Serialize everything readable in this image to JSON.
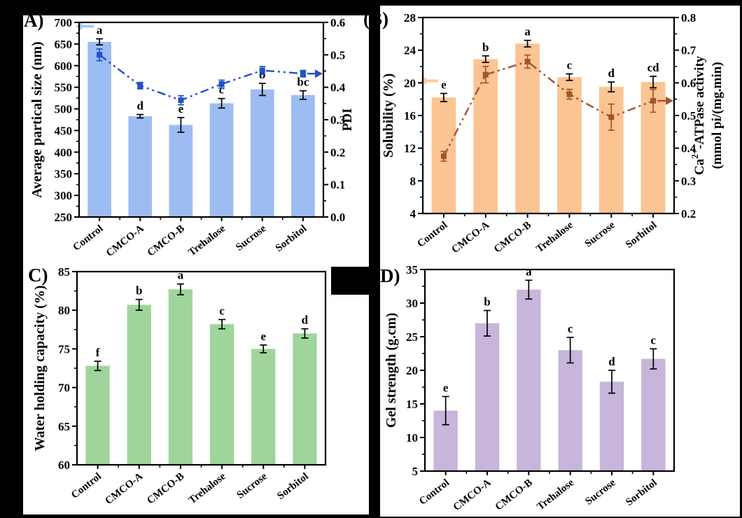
{
  "figure": {
    "background": "#000000",
    "panel_labels": {
      "a": "A)",
      "b": "(B)",
      "c": "C)",
      "d": "D)"
    }
  },
  "chart_data": [
    {
      "panel": "A",
      "type": "bar",
      "categories": [
        "Control",
        "CMCO-A",
        "CMCO-B",
        "Trehalose",
        "Sucrose",
        "Sorbitol"
      ],
      "bars": {
        "name": "Average partical size",
        "axis": "left",
        "values": [
          655,
          483,
          463,
          513,
          545,
          532
        ],
        "errors": [
          7,
          4,
          17,
          11,
          14,
          10
        ],
        "sig_letters": [
          "a",
          "d",
          "e",
          "c",
          "b",
          "bc"
        ],
        "color": "#9dbcf2"
      },
      "line": {
        "name": "PDI",
        "axis": "right",
        "values": [
          0.5,
          0.405,
          0.36,
          0.41,
          0.452,
          0.442
        ],
        "errors": [
          0.018,
          0.01,
          0.014,
          0.012,
          0.012,
          0.01
        ],
        "color": "#2051c8",
        "marker": "square",
        "line_style": "dash-dot-dot"
      },
      "left_axis": {
        "label_lines": [
          "Average partical size (nm)"
        ],
        "min": 250,
        "max": 700,
        "step": 50,
        "decimals": 0
      },
      "right_axis": {
        "label_lines": [
          "PDI"
        ],
        "min": 0.0,
        "max": 0.6,
        "step": 0.1,
        "decimals": 1
      },
      "arrows": {
        "left_color": "#aac7f2",
        "right_color": "#2051c8"
      }
    },
    {
      "panel": "B",
      "type": "bar",
      "categories": [
        "Control",
        "CMCO-A",
        "CMCO-B",
        "Trehalose",
        "Sucrose",
        "Sorbitol"
      ],
      "bars": {
        "name": "Solubility",
        "axis": "left",
        "values": [
          18.2,
          22.9,
          24.8,
          20.7,
          19.5,
          20.1
        ],
        "errors": [
          0.5,
          0.4,
          0.4,
          0.4,
          0.6,
          0.7
        ],
        "sig_letters": [
          "e",
          "b",
          "a",
          "c",
          "d",
          "cd"
        ],
        "color": "#fbc493"
      },
      "line": {
        "name": "Ca2+-ATPase activity",
        "axis": "right",
        "values": [
          0.375,
          0.625,
          0.665,
          0.565,
          0.495,
          0.545
        ],
        "errors": [
          0.015,
          0.025,
          0.02,
          0.015,
          0.04,
          0.035
        ],
        "color": "#a4542c",
        "marker": "square",
        "line_style": "dash-dot-dot"
      },
      "left_axis": {
        "label_lines": [
          "Solubility (%)"
        ],
        "min": 4,
        "max": 28,
        "step": 4,
        "decimals": 0
      },
      "right_axis": {
        "label_lines": [
          "Ca²⁺-ATPase activity",
          "(mmol pi/(mg.min)"
        ],
        "min": 0.2,
        "max": 0.8,
        "step": 0.1,
        "decimals": 1
      },
      "arrows": {
        "left_color": "#f9c9a2",
        "right_color": "#a4542c"
      }
    },
    {
      "panel": "C",
      "type": "bar",
      "categories": [
        "Control",
        "CMCO-A",
        "CMCO-B",
        "Trehalose",
        "Sucrose",
        "Sorbitol"
      ],
      "bars": {
        "name": "Water holding capacity",
        "axis": "left",
        "values": [
          72.8,
          80.7,
          82.7,
          78.2,
          75.0,
          77.0
        ],
        "errors": [
          0.6,
          0.7,
          0.7,
          0.6,
          0.5,
          0.6
        ],
        "sig_letters": [
          "f",
          "b",
          "a",
          "c",
          "e",
          "d"
        ],
        "color": "#9fd59b"
      },
      "line": null,
      "left_axis": {
        "label_lines": [
          "Water holding capacity (%)"
        ],
        "min": 60,
        "max": 85,
        "step": 5,
        "decimals": 0
      },
      "right_axis": null,
      "arrows": null
    },
    {
      "panel": "D",
      "type": "bar",
      "categories": [
        "Control",
        "CMCO-A",
        "CMCO-B",
        "Trehalose",
        "Sucrose",
        "Sorbitol"
      ],
      "bars": {
        "name": "Gel strength",
        "axis": "left",
        "values": [
          14.0,
          27.0,
          32.0,
          23.0,
          18.3,
          21.7
        ],
        "errors": [
          2.1,
          1.9,
          1.4,
          1.9,
          1.7,
          1.5
        ],
        "sig_letters": [
          "e",
          "b",
          "a",
          "c",
          "d",
          "c"
        ],
        "color": "#c7b5db"
      },
      "line": null,
      "left_axis": {
        "label_lines": [
          "Gel strength (g.cm)"
        ],
        "min": 5,
        "max": 35,
        "step": 5,
        "decimals": 0
      },
      "right_axis": null,
      "arrows": null
    }
  ]
}
